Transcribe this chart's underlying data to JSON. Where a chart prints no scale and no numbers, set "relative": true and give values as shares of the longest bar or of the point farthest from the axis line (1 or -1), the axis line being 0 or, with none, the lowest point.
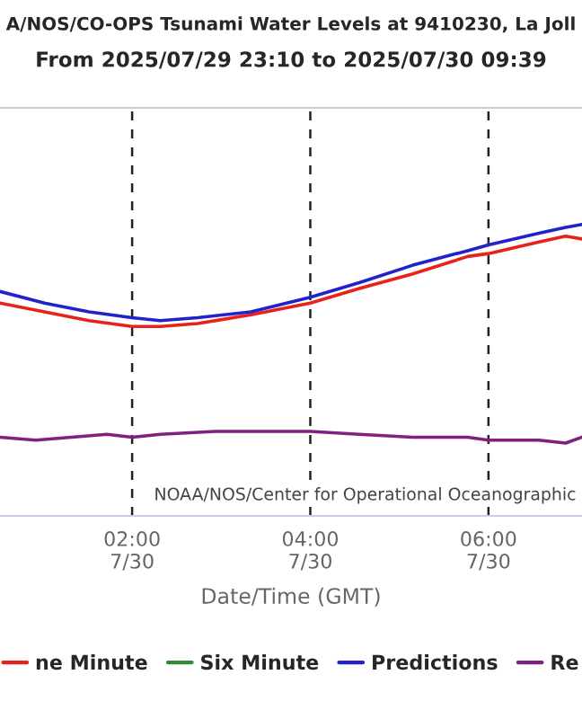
{
  "chart_data": {
    "type": "line",
    "title": "A/NOS/CO-OPS Tsunami Water Levels at 9410230, La Joll",
    "subtitle": "From 2025/07/29 23:10 to 2025/07/30 09:39",
    "xlabel": "Date/Time (GMT)",
    "relative": true,
    "xlim": [
      "2025-07-30T00:31",
      "2025-07-30T07:03"
    ],
    "xticks": [
      {
        "value": "2025-07-30T02:00",
        "label": "02:00\n7/30"
      },
      {
        "value": "2025-07-30T04:00",
        "label": "04:00\n7/30"
      },
      {
        "value": "2025-07-30T06:00",
        "label": "06:00\n7/30"
      }
    ],
    "grid": "x",
    "legend": "bottom",
    "annotations": [
      "NOAA/NOS/Center for Operational Oceanographic"
    ],
    "series": [
      {
        "name": "ne Minute",
        "color": "#e8221b",
        "x": [
          "2025-07-30T00:31",
          "2025-07-30T01:01",
          "2025-07-30T01:31",
          "2025-07-30T02:00",
          "2025-07-30T02:19",
          "2025-07-30T02:44",
          "2025-07-30T03:20",
          "2025-07-30T04:00",
          "2025-07-30T04:33",
          "2025-07-30T05:09",
          "2025-07-30T05:46",
          "2025-07-30T06:00",
          "2025-07-30T06:34",
          "2025-07-30T06:52",
          "2025-07-30T07:03"
        ],
        "values": [
          0.73,
          0.7,
          0.67,
          0.65,
          0.65,
          0.66,
          0.69,
          0.73,
          0.78,
          0.83,
          0.89,
          0.9,
          0.94,
          0.96,
          0.95
        ]
      },
      {
        "name": "Six Minute",
        "color": "#2e8b3a"
      },
      {
        "name": "Predictions",
        "color": "#2222cc",
        "x": [
          "2025-07-30T00:31",
          "2025-07-30T01:01",
          "2025-07-30T01:31",
          "2025-07-30T02:00",
          "2025-07-30T02:19",
          "2025-07-30T02:44",
          "2025-07-30T03:20",
          "2025-07-30T04:00",
          "2025-07-30T04:33",
          "2025-07-30T05:09",
          "2025-07-30T05:46",
          "2025-07-30T06:00",
          "2025-07-30T06:34",
          "2025-07-30T06:52",
          "2025-07-30T07:03"
        ],
        "values": [
          0.77,
          0.73,
          0.7,
          0.68,
          0.67,
          0.68,
          0.7,
          0.75,
          0.8,
          0.86,
          0.91,
          0.93,
          0.97,
          0.99,
          1.0
        ]
      },
      {
        "name": "Re",
        "color": "#80207f",
        "x": [
          "2025-07-30T00:31",
          "2025-07-30T00:55",
          "2025-07-30T01:19",
          "2025-07-30T01:43",
          "2025-07-30T02:00",
          "2025-07-30T02:19",
          "2025-07-30T02:56",
          "2025-07-30T03:32",
          "2025-07-30T04:00",
          "2025-07-30T04:33",
          "2025-07-30T05:09",
          "2025-07-30T05:46",
          "2025-07-30T06:00",
          "2025-07-30T06:34",
          "2025-07-30T06:52",
          "2025-07-30T07:03"
        ],
        "values": [
          0.27,
          0.26,
          0.27,
          0.28,
          0.27,
          0.28,
          0.29,
          0.29,
          0.29,
          0.28,
          0.27,
          0.27,
          0.26,
          0.26,
          0.25,
          0.27
        ]
      }
    ]
  }
}
